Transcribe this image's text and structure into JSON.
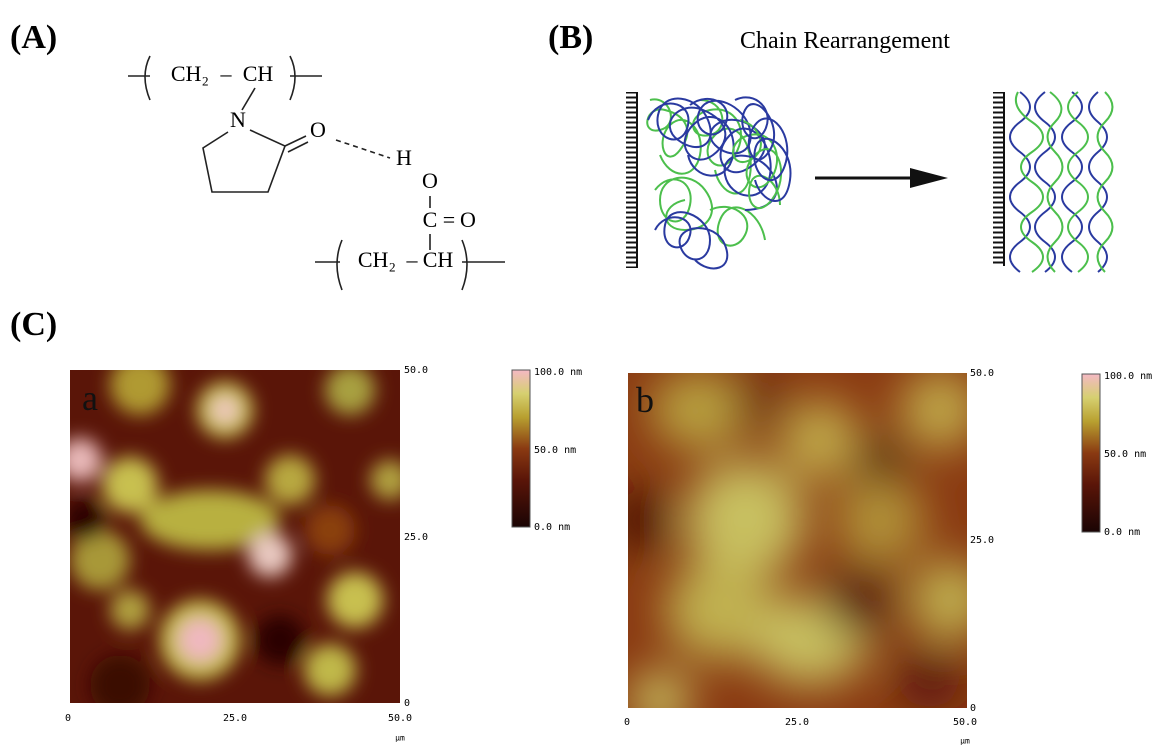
{
  "panel_a": {
    "label": "(A)",
    "atoms": {
      "ch2_top": "CH₂",
      "dash_top": "–",
      "ch_top": "CH",
      "n": "N",
      "o_ring": "O",
      "h": "H",
      "o_acid": "O",
      "c_acid": "C",
      "eq": "=",
      "o_carbonyl": "O",
      "ch2_bottom": "CH₂",
      "dash_bottom": "–",
      "ch_bottom": "CH"
    }
  },
  "panel_b": {
    "label": "(B)",
    "title": "Chain Rearrangement"
  },
  "panel_c": {
    "label": "(C)",
    "images": [
      {
        "letter": "a",
        "y_ticks": [
          "50.0",
          "25.0",
          "0"
        ],
        "x_ticks": [
          "0",
          "25.0",
          "50.0"
        ],
        "x_unit": "μm",
        "colorbar": [
          "100.0 nm",
          "50.0 nm",
          "0.0 nm"
        ]
      },
      {
        "letter": "b",
        "y_ticks": [
          "50.0",
          "25.0",
          "0"
        ],
        "x_ticks": [
          "0",
          "25.0",
          "50.0"
        ],
        "x_unit": "μm",
        "colorbar": [
          "100.0 nm",
          "50.0 nm",
          "0.0 nm"
        ]
      }
    ]
  }
}
